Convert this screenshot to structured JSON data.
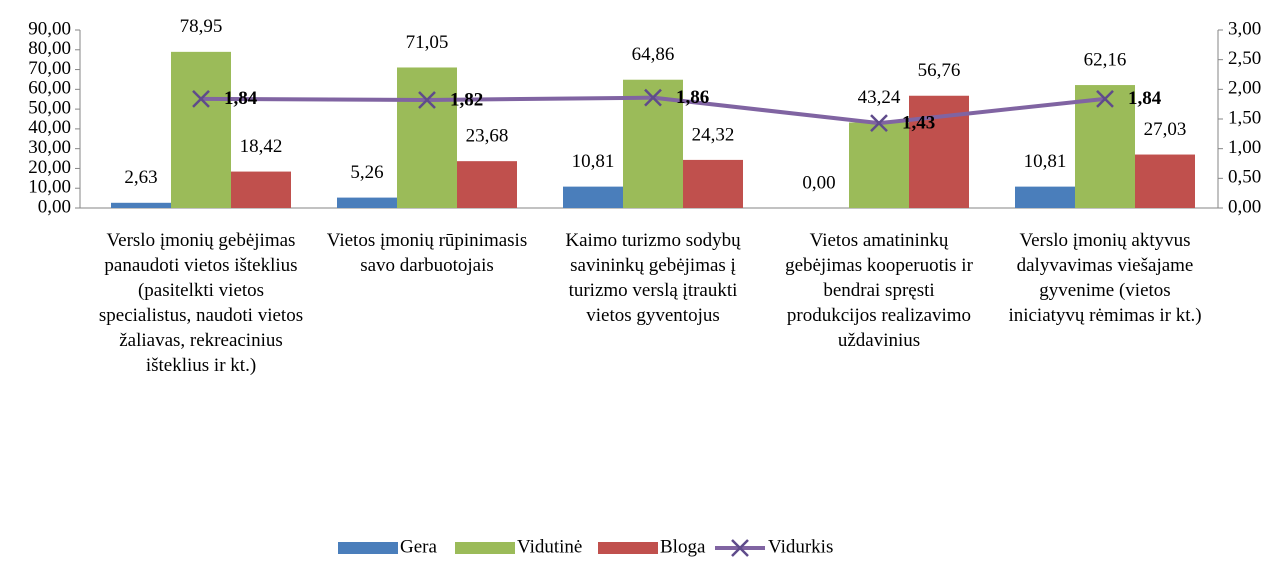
{
  "chart_data": {
    "type": "bar",
    "categories": [
      "Verslo įmonių gebėjimas panaudoti vietos išteklius (pasitelkti vietos specialistus, naudoti vietos žaliavas, rekreacinius išteklius ir kt.)",
      "Vietos įmonių rūpinimasis savo darbuotojais",
      "Kaimo turizmo sodybų savininkų gebėjimas į turizmo verslą įtraukti vietos gyventojus",
      "Vietos amatininkų gebėjimas kooperuotis ir bendrai spręsti produkcijos realizavimo uždavinius",
      "Verslo įmonių aktyvus dalyvavimas viešajame gyvenime (vietos iniciatyvų rėmimas ir kt.)"
    ],
    "series": [
      {
        "name": "Gera",
        "color": "#4a7ebb",
        "values": [
          2.63,
          5.26,
          10.81,
          0,
          10.81
        ],
        "value_labels": [
          "2,63",
          "5,26",
          "10,81",
          "0,00",
          "10,81"
        ]
      },
      {
        "name": "Vidutinė",
        "color": "#9bbb59",
        "values": [
          78.95,
          71.05,
          64.86,
          43.24,
          62.16
        ],
        "value_labels": [
          "78,95",
          "71,05",
          "64,86",
          "43,24",
          "62,16"
        ]
      },
      {
        "name": "Bloga",
        "color": "#c0504d",
        "values": [
          18.42,
          23.68,
          24.32,
          56.76,
          27.03
        ],
        "value_labels": [
          "18,42",
          "23,68",
          "24,32",
          "56,76",
          "27,03"
        ]
      },
      {
        "name": "Vidurkis",
        "type": "line",
        "axis": "y2",
        "color": "#8064a2",
        "values": [
          1.84,
          1.82,
          1.86,
          1.43,
          1.84
        ],
        "value_labels": [
          "1,84",
          "1,82",
          "1,86",
          "1,43",
          "1,84"
        ]
      }
    ],
    "ylim": [
      0,
      90
    ],
    "yticks": [
      {
        "value": 0,
        "label": "0,00"
      },
      {
        "value": 10,
        "label": "10,00"
      },
      {
        "value": 20,
        "label": "20,00"
      },
      {
        "value": 30,
        "label": "30,00"
      },
      {
        "value": 40,
        "label": "40,00"
      },
      {
        "value": 50,
        "label": "50,00"
      },
      {
        "value": 60,
        "label": "60,00"
      },
      {
        "value": 70,
        "label": "70,00"
      },
      {
        "value": 80,
        "label": "80,00"
      },
      {
        "value": 90,
        "label": "90,00"
      }
    ],
    "y2lim": [
      0,
      3
    ],
    "y2ticks": [
      {
        "value": 0,
        "label": "0,00"
      },
      {
        "value": 0.5,
        "label": "0,50"
      },
      {
        "value": 1,
        "label": "1,00"
      },
      {
        "value": 1.5,
        "label": "1,50"
      },
      {
        "value": 2,
        "label": "2,00"
      },
      {
        "value": 2.5,
        "label": "2,50"
      },
      {
        "value": 3,
        "label": "3,00"
      }
    ],
    "grid": false,
    "legend": "bottom"
  }
}
